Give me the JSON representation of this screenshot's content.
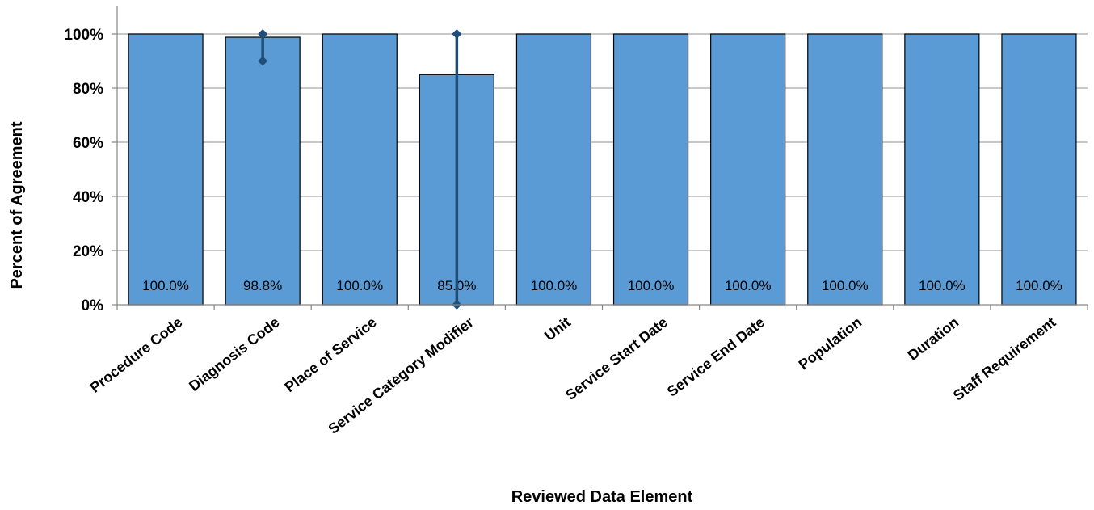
{
  "chart_data": {
    "type": "bar",
    "title": "",
    "xlabel": "Reviewed Data Element",
    "ylabel": "Percent of Agreement",
    "ylim": [
      0,
      100
    ],
    "yticks": [
      0,
      20,
      40,
      60,
      80,
      100
    ],
    "ytick_labels": [
      "0%",
      "20%",
      "40%",
      "60%",
      "80%",
      "100%"
    ],
    "categories": [
      "Procedure Code",
      "Diagnosis Code",
      "Place of Service",
      "Service Category Modifier",
      "Unit",
      "Service Start Date",
      "Service End Date",
      "Population",
      "Duration",
      "Staff Requirement"
    ],
    "values": [
      100.0,
      98.8,
      100.0,
      85.0,
      100.0,
      100.0,
      100.0,
      100.0,
      100.0,
      100.0
    ],
    "data_labels": [
      "100.0%",
      "98.8%",
      "100.0%",
      "85.0%",
      "100.0%",
      "100.0%",
      "100.0%",
      "100.0%",
      "100.0%",
      "100.0%"
    ],
    "error_bars": [
      null,
      {
        "low": 90,
        "high": 100
      },
      null,
      {
        "low": 0,
        "high": 100
      },
      null,
      null,
      null,
      null,
      null,
      null
    ],
    "grid": true,
    "colors": {
      "bar": "#5b9bd5",
      "bar_edge": "#000000",
      "error_bar": "#1f4e79",
      "grid": "#a6a6a6"
    }
  }
}
